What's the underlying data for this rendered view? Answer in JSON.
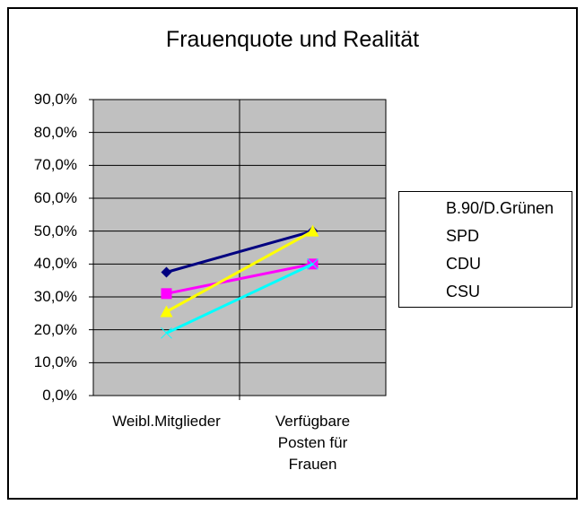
{
  "chart_data": {
    "type": "line",
    "title": "Frauenquote und Realität",
    "categories": [
      "Weibl.Mitglieder",
      "Verfügbare Posten für Frauen"
    ],
    "category_lines": [
      [
        "Weibl.Mitglieder"
      ],
      [
        "Verfügbare",
        "Posten für",
        "Frauen"
      ]
    ],
    "series": [
      {
        "name": "B.90/D.Grünen",
        "values": [
          37.5,
          50.0
        ],
        "color": "#000080",
        "marker": "diamond"
      },
      {
        "name": "SPD",
        "values": [
          31.0,
          40.0
        ],
        "color": "#ff00ff",
        "marker": "square"
      },
      {
        "name": "CDU",
        "values": [
          25.5,
          50.0
        ],
        "color": "#ffff00",
        "marker": "triangle"
      },
      {
        "name": "CSU",
        "values": [
          19.0,
          40.0
        ],
        "color": "#00ffff",
        "marker": "x"
      }
    ],
    "yticks": [
      "0,0%",
      "10,0%",
      "20,0%",
      "30,0%",
      "40,0%",
      "50,0%",
      "60,0%",
      "70,0%",
      "80,0%",
      "90,0%"
    ],
    "ylim": [
      0,
      90
    ],
    "xlabel": "",
    "ylabel": "",
    "grid": true,
    "legend_position": "right",
    "plot_bg": "#c0c0c0"
  }
}
